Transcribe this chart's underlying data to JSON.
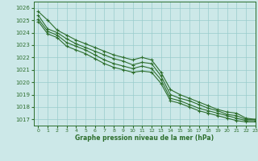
{
  "xlabel": "Graphe pression niveau de la mer (hPa)",
  "xlim": [
    -0.5,
    23
  ],
  "ylim": [
    1016.5,
    1026.5
  ],
  "yticks": [
    1017,
    1018,
    1019,
    1020,
    1021,
    1022,
    1023,
    1024,
    1025,
    1026
  ],
  "xticks": [
    0,
    1,
    2,
    3,
    4,
    5,
    6,
    7,
    8,
    9,
    10,
    11,
    12,
    13,
    14,
    15,
    16,
    17,
    18,
    19,
    20,
    21,
    22,
    23
  ],
  "background_color": "#cce8e8",
  "grid_color": "#99cccc",
  "line_color": "#2d6e2d",
  "lines": [
    [
      1025.7,
      1025.0,
      1024.2,
      1023.8,
      1023.4,
      1023.1,
      1022.8,
      1022.5,
      1022.2,
      1022.0,
      1021.8,
      1022.0,
      1021.8,
      1020.8,
      1019.4,
      1019.0,
      1018.7,
      1018.4,
      1018.1,
      1017.8,
      1017.6,
      1017.5,
      1017.1,
      1017.0
    ],
    [
      1025.4,
      1024.3,
      1024.0,
      1023.5,
      1023.1,
      1022.8,
      1022.5,
      1022.2,
      1021.9,
      1021.7,
      1021.4,
      1021.6,
      1021.5,
      1020.5,
      1019.0,
      1018.7,
      1018.5,
      1018.2,
      1017.9,
      1017.7,
      1017.4,
      1017.3,
      1017.0,
      1017.0
    ],
    [
      1025.1,
      1024.1,
      1023.8,
      1023.2,
      1022.9,
      1022.6,
      1022.2,
      1021.8,
      1021.5,
      1021.3,
      1021.1,
      1021.3,
      1021.1,
      1020.2,
      1018.7,
      1018.5,
      1018.2,
      1017.9,
      1017.7,
      1017.5,
      1017.3,
      1017.1,
      1016.9,
      1016.9
    ],
    [
      1024.9,
      1023.9,
      1023.6,
      1022.9,
      1022.6,
      1022.3,
      1021.9,
      1021.5,
      1021.2,
      1021.0,
      1020.8,
      1020.9,
      1020.8,
      1019.9,
      1018.5,
      1018.3,
      1018.0,
      1017.7,
      1017.5,
      1017.3,
      1017.1,
      1016.9,
      1016.8,
      1016.8
    ]
  ]
}
